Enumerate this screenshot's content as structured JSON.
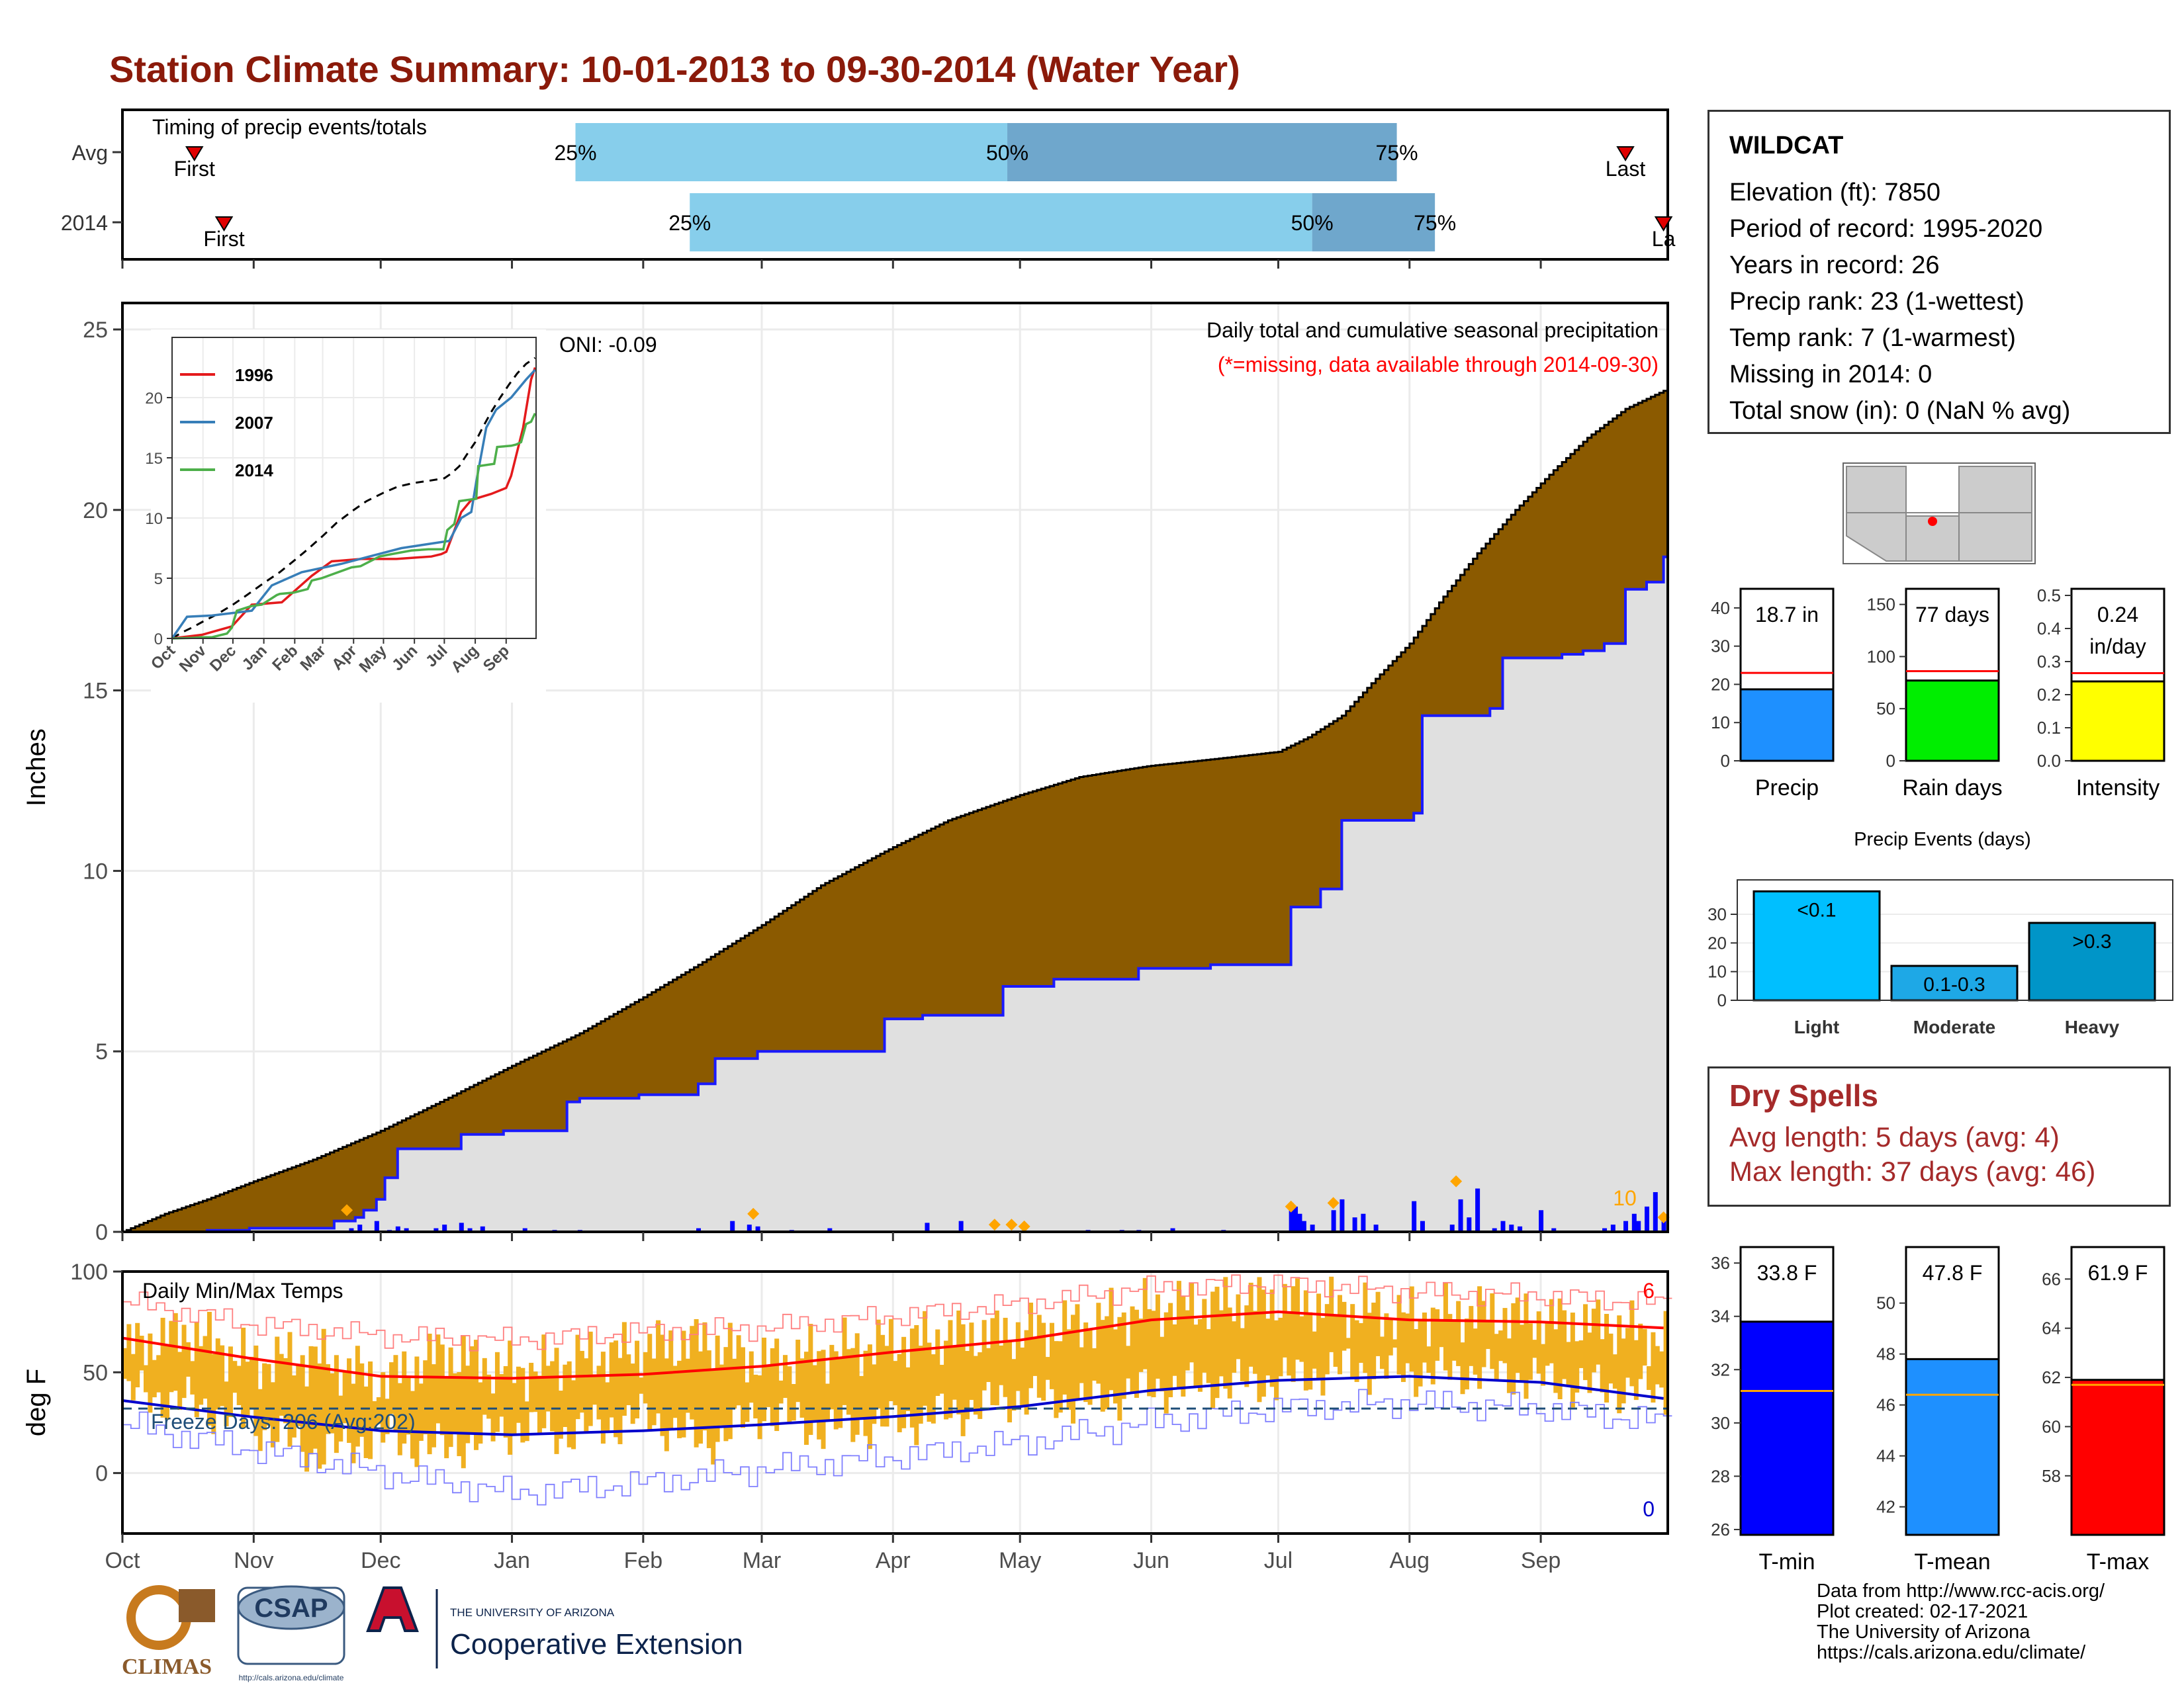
{
  "title": "Station Climate Summary: 10-01-2013 to 09-30-2014 (Water Year)",
  "station": {
    "name": "WILDCAT",
    "lines": [
      "Elevation (ft): 7850",
      "Period of record: 1995-2020",
      "Years in record: 26",
      "Precip rank: 23 (1-wettest)",
      "Temp rank: 7 (1-warmest)",
      "Missing in 2014: 0",
      "Total snow (in): 0 (NaN % avg)"
    ]
  },
  "dry_spells": {
    "title": "Dry Spells",
    "lines": [
      "Avg length: 5 days (avg: 4)",
      "Max length: 37 days (avg: 46)"
    ]
  },
  "credits": [
    "Data from http://www.rcc-acis.org/",
    "Plot created: 02-17-2021",
    "The University of Arizona",
    "https://cals.arizona.edu/climate/"
  ],
  "logos": {
    "climas": "CLIMAS",
    "csap": "CSAP",
    "csap_url": "http://cals.arizona.edu/climate",
    "ua_small": "THE UNIVERSITY OF ARIZONA",
    "ua_big": "Cooperative Extension"
  },
  "colors": {
    "title": "#8b1a0a",
    "cumulative_fill": "#8b5a00",
    "gray_fill": "#e0e0e0",
    "daily_bar": "#0000ff",
    "avg_daily_marker": "#ffa500",
    "timing_light": "#87ceeb",
    "timing_dark": "#6fa7cc",
    "temp_bar": "#f0b020",
    "tmax_avg": "#ff0000",
    "tmin_avg": "#0000cc"
  },
  "chart_data": [
    {
      "id": "timing",
      "type": "bar",
      "title": "Timing of precip events/totals",
      "rows": [
        {
          "label": "Avg",
          "first": "First",
          "last": "Last",
          "first_day": 17,
          "p25_day": 107,
          "p50_day": 209,
          "p75_day": 301,
          "last_day": 355
        },
        {
          "label": "2014",
          "first": "First",
          "last": "La",
          "first_day": 24,
          "p25_day": 134,
          "p50_day": 281,
          "p75_day": 310,
          "last_day": 364
        }
      ],
      "pct_labels": [
        "25%",
        "50%",
        "75%"
      ],
      "day_range": [
        0,
        365
      ]
    },
    {
      "id": "cumulative",
      "type": "area",
      "ylabel": "Inches",
      "annotation_oni": "ONI: -0.09",
      "note_title": "Daily total and cumulative seasonal precipitation",
      "note_missing": "(*=missing, data available through 2014-09-30)",
      "max_daily_label": "10",
      "ylim": [
        0,
        25
      ],
      "yticks": [
        0,
        5,
        10,
        15,
        20,
        25
      ],
      "months": [
        "Oct",
        "Nov",
        "Dec",
        "Jan",
        "Feb",
        "Mar",
        "Apr",
        "May",
        "Jun",
        "Jul",
        "Aug",
        "Sep"
      ],
      "avg_cumulative": {
        "x_day": [
          0,
          10,
          20,
          31,
          45,
          61,
          75,
          92,
          108,
          123,
          136,
          151,
          165,
          181,
          195,
          212,
          226,
          242,
          258,
          273,
          280,
          288,
          295,
          304,
          312,
          320,
          329,
          338,
          346,
          355,
          364
        ],
        "y": [
          0,
          0.5,
          0.9,
          1.4,
          2.0,
          2.8,
          3.6,
          4.6,
          5.5,
          6.5,
          7.4,
          8.5,
          9.6,
          10.6,
          11.4,
          12.1,
          12.6,
          12.9,
          13.1,
          13.3,
          13.7,
          14.3,
          15.2,
          16.3,
          17.6,
          18.8,
          20.0,
          21.1,
          22.0,
          22.8,
          23.3
        ]
      },
      "wy2014_cumulative": {
        "x_day": [
          0,
          20,
          30,
          40,
          50,
          55,
          57,
          60,
          62,
          65,
          80,
          90,
          105,
          108,
          122,
          136,
          140,
          150,
          180,
          189,
          208,
          220,
          240,
          257,
          260,
          272,
          276,
          283,
          288,
          305,
          307,
          323,
          326,
          340,
          345,
          350,
          355,
          360,
          364
        ],
        "y": [
          0,
          0.04,
          0.1,
          0.1,
          0.3,
          0.4,
          0.6,
          0.9,
          1.5,
          2.3,
          2.7,
          2.8,
          3.6,
          3.7,
          3.8,
          4.1,
          4.8,
          5.0,
          5.9,
          6.0,
          6.8,
          7.0,
          7.3,
          7.4,
          7.4,
          7.4,
          9.0,
          9.5,
          11.4,
          11.6,
          14.3,
          14.5,
          15.9,
          16.0,
          16.1,
          16.3,
          17.8,
          18.0,
          18.7
        ]
      },
      "daily_precip": {
        "x_day": [
          54,
          56,
          60,
          63,
          65,
          67,
          74,
          76,
          80,
          82,
          85,
          95,
          102,
          108,
          136,
          144,
          148,
          150,
          158,
          167,
          190,
          198,
          228,
          236,
          240,
          248,
          260,
          276,
          277,
          278,
          279,
          281,
          286,
          288,
          291,
          293,
          296,
          305,
          307,
          314,
          316,
          318,
          320,
          324,
          326,
          328,
          330,
          335,
          338,
          350,
          352,
          355,
          357,
          358,
          360,
          362,
          364
        ],
        "y": [
          0.1,
          0.2,
          0.3,
          0.05,
          0.15,
          0.1,
          0.1,
          0.2,
          0.25,
          0.1,
          0.15,
          0.1,
          0.05,
          0.05,
          0.1,
          0.3,
          0.2,
          0.15,
          0.05,
          0.1,
          0.25,
          0.3,
          0.05,
          0.05,
          0.05,
          0.1,
          0.05,
          0.8,
          0.7,
          0.5,
          0.3,
          0.2,
          0.6,
          0.9,
          0.4,
          0.5,
          0.2,
          0.85,
          0.3,
          0.2,
          0.9,
          0.4,
          1.2,
          0.1,
          0.3,
          0.2,
          0.15,
          0.6,
          0.1,
          0.1,
          0.2,
          0.3,
          0.5,
          0.3,
          0.7,
          1.1,
          0.4
        ]
      },
      "avg_markers": {
        "x_day": [
          53,
          149,
          206,
          210,
          213,
          276,
          286,
          315,
          364
        ],
        "y": [
          0.6,
          0.5,
          0.2,
          0.2,
          0.15,
          0.7,
          0.8,
          1.4,
          0.4
        ]
      }
    },
    {
      "id": "inset",
      "type": "line",
      "ylim": [
        0,
        25
      ],
      "yticks": [
        0,
        5,
        10,
        15,
        20
      ],
      "months": [
        "Oct",
        "Nov",
        "Dec",
        "Jan",
        "Feb",
        "Mar",
        "Apr",
        "May",
        "Jun",
        "Jul",
        "Aug",
        "Sep"
      ],
      "series": [
        {
          "name": "1996",
          "color": "#e41a1c",
          "x_day": [
            0,
            30,
            60,
            80,
            110,
            140,
            160,
            190,
            225,
            260,
            270,
            275,
            290,
            300,
            320,
            335,
            340,
            352,
            360,
            364
          ],
          "y": [
            0,
            0.3,
            1.0,
            2.8,
            3.0,
            5.2,
            6.4,
            6.6,
            6.6,
            6.8,
            7.0,
            7.2,
            10.5,
            11.5,
            12.0,
            12.5,
            13.5,
            17.5,
            21.5,
            22.5
          ]
        },
        {
          "name": "2007",
          "color": "#377eb8",
          "x_day": [
            0,
            5,
            15,
            40,
            80,
            100,
            130,
            170,
            230,
            270,
            278,
            290,
            300,
            305,
            315,
            325,
            340,
            355,
            364
          ],
          "y": [
            0,
            0.6,
            1.8,
            1.9,
            2.3,
            4.4,
            5.5,
            6.2,
            7.5,
            8.0,
            8.1,
            10.0,
            10.5,
            13.0,
            17.5,
            19.0,
            20.0,
            21.5,
            22.3
          ]
        },
        {
          "name": "2014",
          "color": "#4daf4a",
          "x_day": [
            0,
            20,
            30,
            40,
            50,
            55,
            57,
            60,
            62,
            65,
            80,
            90,
            105,
            108,
            122,
            136,
            140,
            150,
            180,
            189,
            208,
            220,
            240,
            257,
            260,
            272,
            276,
            283,
            288,
            305,
            307,
            323,
            326,
            340,
            345,
            350,
            355,
            360,
            364
          ],
          "y": [
            0,
            0.04,
            0.1,
            0.1,
            0.3,
            0.4,
            0.6,
            0.9,
            1.5,
            2.3,
            2.7,
            2.8,
            3.6,
            3.7,
            3.8,
            4.1,
            4.8,
            5.0,
            5.9,
            6.0,
            6.8,
            7.0,
            7.3,
            7.4,
            7.4,
            7.4,
            9.0,
            9.5,
            11.4,
            11.6,
            14.3,
            14.5,
            15.9,
            16.0,
            16.1,
            16.3,
            17.8,
            18.0,
            18.7
          ]
        }
      ],
      "avg_cumulative": {
        "x_day": [
          0,
          10,
          20,
          31,
          45,
          61,
          75,
          92,
          108,
          123,
          136,
          151,
          165,
          181,
          195,
          212,
          226,
          242,
          258,
          273,
          280,
          288,
          295,
          304,
          312,
          320,
          329,
          338,
          346,
          355,
          364
        ],
        "y": [
          0,
          0.5,
          0.9,
          1.4,
          2.0,
          2.8,
          3.6,
          4.6,
          5.5,
          6.5,
          7.4,
          8.5,
          9.6,
          10.6,
          11.4,
          12.1,
          12.6,
          12.9,
          13.1,
          13.3,
          13.7,
          14.3,
          15.2,
          16.3,
          17.6,
          18.8,
          20.0,
          21.1,
          22.0,
          22.8,
          23.3
        ]
      }
    },
    {
      "id": "temps",
      "type": "bar",
      "title": "Daily Min/Max Temps",
      "ylabel": "deg F",
      "freeze_label": "Freeze Days: 206 (Avg:202)",
      "freeze_line": 32,
      "max_record_label": "6",
      "min_record_label": "0",
      "ylim": [
        -30,
        100
      ],
      "yticks": [
        0,
        50,
        100
      ],
      "months": [
        "Oct",
        "Nov",
        "Dec",
        "Jan",
        "Feb",
        "Mar",
        "Apr",
        "May",
        "Jun",
        "Jul",
        "Aug",
        "Sep"
      ],
      "avg_tmax": {
        "x_day": [
          0,
          30,
          61,
          92,
          123,
          151,
          182,
          212,
          243,
          273,
          304,
          335,
          364
        ],
        "y": [
          67,
          57,
          48,
          47,
          49,
          53,
          60,
          66,
          76,
          80,
          76,
          75,
          72
        ]
      },
      "avg_tmin": {
        "x_day": [
          0,
          30,
          61,
          92,
          123,
          151,
          182,
          212,
          243,
          273,
          304,
          335,
          364
        ],
        "y": [
          36,
          28,
          21,
          19,
          21,
          24,
          28,
          33,
          41,
          46,
          48,
          45,
          37
        ]
      },
      "record_max": {
        "x_day": [
          0,
          30,
          61,
          92,
          123,
          151,
          182,
          212,
          243,
          273,
          304,
          335,
          364
        ],
        "y": [
          85,
          74,
          68,
          66,
          70,
          72,
          78,
          84,
          92,
          94,
          90,
          88,
          84
        ]
      },
      "record_min": {
        "x_day": [
          0,
          30,
          61,
          92,
          123,
          151,
          182,
          212,
          243,
          273,
          304,
          335,
          364
        ],
        "y": [
          24,
          12,
          0,
          -10,
          -5,
          2,
          8,
          15,
          25,
          32,
          35,
          32,
          25
        ]
      },
      "tmax_2014": {
        "x_day": [
          0,
          15,
          30,
          45,
          61,
          75,
          92,
          105,
          123,
          137,
          151,
          165,
          182,
          196,
          212,
          227,
          243,
          258,
          273,
          288,
          304,
          320,
          335,
          350,
          364
        ],
        "y": [
          62,
          70,
          55,
          58,
          45,
          60,
          50,
          56,
          62,
          66,
          55,
          60,
          65,
          68,
          70,
          74,
          82,
          84,
          86,
          82,
          78,
          80,
          76,
          74,
          66
        ]
      },
      "tmin_2014": {
        "x_day": [
          0,
          15,
          30,
          45,
          61,
          75,
          92,
          105,
          123,
          137,
          151,
          165,
          182,
          196,
          212,
          227,
          243,
          258,
          273,
          288,
          304,
          320,
          335,
          350,
          364
        ],
        "y": [
          40,
          35,
          25,
          10,
          18,
          12,
          22,
          20,
          28,
          15,
          30,
          22,
          25,
          30,
          38,
          35,
          42,
          44,
          46,
          52,
          50,
          50,
          46,
          42,
          40
        ]
      }
    },
    {
      "id": "precip_summary",
      "type": "bar",
      "bars": [
        {
          "category": "Precip",
          "value": 18.7,
          "label": "18.7 in",
          "avg": 23,
          "ylim": [
            0,
            45
          ],
          "yticks": [
            0,
            10,
            20,
            30,
            40
          ],
          "color": "#1e90ff"
        },
        {
          "category": "Rain days",
          "value": 77,
          "label": "77 days",
          "avg": 86,
          "ylim": [
            0,
            165
          ],
          "yticks": [
            0,
            50,
            100,
            150
          ],
          "color": "#00ee00"
        },
        {
          "category": "Intensity",
          "value": 0.24,
          "label": "0.24",
          "label2": "in/day",
          "avg": 0.265,
          "ylim": [
            0,
            0.52
          ],
          "yticks": [
            0.0,
            0.1,
            0.2,
            0.3,
            0.4,
            0.5
          ],
          "color": "#ffff00"
        }
      ]
    },
    {
      "id": "precip_events",
      "type": "bar",
      "title": "Precip Events (days)",
      "categories": [
        "Light",
        "Moderate",
        "Heavy"
      ],
      "values": [
        38,
        12,
        27
      ],
      "bar_labels": [
        "<0.1",
        "0.1-0.3",
        ">0.3"
      ],
      "ylim": [
        0,
        42
      ],
      "yticks": [
        0,
        10,
        20,
        30
      ],
      "colors": [
        "#00bfff",
        "#1ea8e6",
        "#0095c8"
      ]
    },
    {
      "id": "temp_summary",
      "type": "bar",
      "bars": [
        {
          "category": "T-min",
          "value": 33.8,
          "label": "33.8 F",
          "avg": 31.2,
          "ylim": [
            25.8,
            36.6
          ],
          "yticks": [
            26,
            28,
            30,
            32,
            34,
            36
          ],
          "color": "#0000ff"
        },
        {
          "category": "T-mean",
          "value": 47.8,
          "label": "47.8 F",
          "avg": 46.4,
          "ylim": [
            40.9,
            52.2
          ],
          "yticks": [
            42,
            44,
            46,
            48,
            50
          ],
          "color": "#1e90ff"
        },
        {
          "category": "T-max",
          "value": 61.9,
          "label": "61.9 F",
          "avg": 61.7,
          "ylim": [
            55.6,
            67.3
          ],
          "yticks": [
            58,
            60,
            62,
            64,
            66
          ],
          "color": "#ff0000"
        }
      ]
    }
  ]
}
